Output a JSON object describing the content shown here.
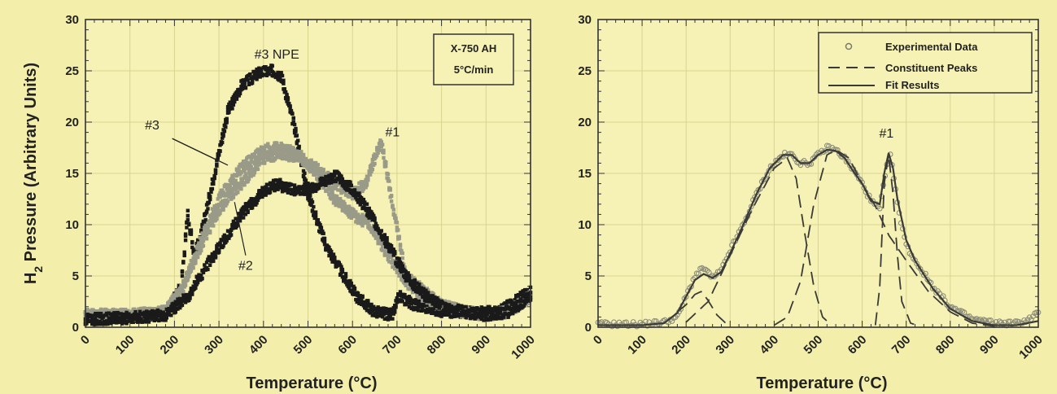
{
  "colors": {
    "background": "#f3efaa",
    "plot_background": "#f6f2b6",
    "grid": "#d9d48c",
    "axis": "#333333",
    "dark_series": "#1a1a1a",
    "gray_series": "#9a9a88",
    "fit_line": "#3a3a36"
  },
  "ylabel_main": "H",
  "ylabel_sub": "2",
  "ylabel_rest": " Pressure (Arbitrary Units)",
  "chart_data": [
    {
      "type": "scatter",
      "xlabel": "Temperature (°C)",
      "xlim": [
        0,
        1000
      ],
      "ylim": [
        0,
        30
      ],
      "x_ticks": [
        "0",
        "100",
        "200",
        "300",
        "400",
        "500",
        "600",
        "700",
        "800",
        "900",
        "1000"
      ],
      "y_ticks": [
        "0",
        "5",
        "10",
        "15",
        "20",
        "25",
        "30"
      ],
      "grid": true,
      "annotations": [
        {
          "text": "#3 NPE",
          "x": 430,
          "y": 26.2
        },
        {
          "text": "#3",
          "x": 150,
          "y": 19.3
        },
        {
          "text": "#1",
          "x": 690,
          "y": 18.6
        },
        {
          "text": "#2",
          "x": 360,
          "y": 5.6
        }
      ],
      "info_box": {
        "line1": "X-750 AH",
        "line2": "5°C/min"
      },
      "series": [
        {
          "label": "#3 NPE",
          "style": "dark",
          "x": [
            0,
            100,
            180,
            215,
            230,
            245,
            260,
            285,
            320,
            350,
            390,
            420,
            440,
            470,
            500,
            540,
            580,
            610,
            650,
            690,
            705,
            740,
            800,
            870,
            930,
            1000
          ],
          "y": [
            1.0,
            1.0,
            1.3,
            4.0,
            11.0,
            7.0,
            9.0,
            14.0,
            21.0,
            23.5,
            24.8,
            25.0,
            24.5,
            19.5,
            13.0,
            8.0,
            5.0,
            3.0,
            1.5,
            1.2,
            3.0,
            2.2,
            1.6,
            1.4,
            1.5,
            3.5
          ]
        },
        {
          "label": "#1",
          "style": "gray",
          "x": [
            0,
            100,
            180,
            220,
            260,
            300,
            350,
            400,
            440,
            480,
            520,
            560,
            600,
            630,
            650,
            665,
            690,
            720,
            760,
            800,
            850,
            900,
            950,
            1000
          ],
          "y": [
            1.2,
            1.2,
            1.5,
            4.0,
            8.0,
            11.5,
            14.0,
            16.5,
            17.0,
            16.5,
            15.5,
            14.0,
            13.0,
            14.0,
            16.5,
            18.0,
            12.0,
            5.0,
            3.5,
            2.2,
            1.5,
            1.2,
            1.5,
            3.0
          ]
        },
        {
          "label": "#3",
          "style": "gray",
          "x": [
            0,
            100,
            180,
            220,
            260,
            300,
            350,
            400,
            440,
            480,
            520,
            560,
            600,
            640,
            680,
            720,
            760,
            800,
            850,
            900,
            950,
            1000
          ],
          "y": [
            1.2,
            1.2,
            1.5,
            4.0,
            8.5,
            12.5,
            15.5,
            17.3,
            17.5,
            16.8,
            15.0,
            12.5,
            11.0,
            10.0,
            7.0,
            4.5,
            3.0,
            2.2,
            1.5,
            1.2,
            1.5,
            3.0
          ]
        },
        {
          "label": "#2",
          "style": "dark",
          "x": [
            0,
            100,
            180,
            230,
            280,
            320,
            360,
            400,
            430,
            460,
            500,
            540,
            560,
            600,
            640,
            680,
            720,
            760,
            800,
            850,
            900,
            950,
            1000
          ],
          "y": [
            0.8,
            0.9,
            1.2,
            3.0,
            6.5,
            9.0,
            11.5,
            13.2,
            14.0,
            13.4,
            13.5,
            14.2,
            14.8,
            13.5,
            11.0,
            8.0,
            5.0,
            3.2,
            2.0,
            1.5,
            1.2,
            1.5,
            3.0
          ]
        }
      ]
    },
    {
      "type": "line",
      "xlabel": "Temperature (°C)",
      "xlim": [
        0,
        1000
      ],
      "ylim": [
        0,
        30
      ],
      "x_ticks": [
        "0",
        "100",
        "200",
        "300",
        "400",
        "500",
        "600",
        "700",
        "800",
        "900",
        "1000"
      ],
      "y_ticks": [
        "0",
        "5",
        "10",
        "15",
        "20",
        "25",
        "30"
      ],
      "grid": true,
      "legend_position": "top-right",
      "annotations": [
        {
          "text": "#1",
          "x": 655,
          "y": 18.5
        }
      ],
      "legend": [
        {
          "label": "Experimental Data",
          "style": "marker"
        },
        {
          "label": "Constituent Peaks",
          "style": "dashed"
        },
        {
          "label": "Fit Results",
          "style": "solid"
        }
      ],
      "series": [
        {
          "label": "Experimental Data",
          "style": "marker",
          "x": [
            0,
            50,
            100,
            150,
            180,
            200,
            220,
            240,
            260,
            280,
            300,
            330,
            360,
            390,
            420,
            440,
            460,
            480,
            500,
            520,
            540,
            560,
            580,
            600,
            620,
            640,
            655,
            665,
            680,
            700,
            720,
            760,
            800,
            850,
            900,
            950,
            980,
            1000
          ],
          "y": [
            0.3,
            0.3,
            0.3,
            0.5,
            1.0,
            3.0,
            5.0,
            5.8,
            4.8,
            5.5,
            7.5,
            10.0,
            13.0,
            15.5,
            16.8,
            16.8,
            16.0,
            16.0,
            16.8,
            17.5,
            17.3,
            16.5,
            15.3,
            14.0,
            12.3,
            11.5,
            15.5,
            16.8,
            12.0,
            8.0,
            6.5,
            4.0,
            2.0,
            0.8,
            0.4,
            0.4,
            0.8,
            1.5
          ]
        },
        {
          "label": "Peak 1",
          "style": "dashed",
          "x": [
            180,
            200,
            220,
            235,
            250,
            270,
            290
          ],
          "y": [
            1.5,
            2.2,
            3.2,
            3.5,
            2.6,
            1.2,
            0.4
          ]
        },
        {
          "label": "Peak 2",
          "style": "dashed",
          "x": [
            200,
            250,
            300,
            350,
            400,
            430,
            450,
            470,
            490,
            510,
            530
          ],
          "y": [
            0.5,
            2.5,
            7.0,
            11.5,
            15.5,
            16.5,
            14.5,
            9.0,
            4.0,
            1.0,
            0.2
          ]
        },
        {
          "label": "Peak 3",
          "style": "dashed",
          "x": [
            400,
            430,
            460,
            490,
            520,
            540,
            570,
            600,
            630,
            660,
            700,
            750,
            800,
            850,
            900
          ],
          "y": [
            0.2,
            1.0,
            4.5,
            12.0,
            16.8,
            17.3,
            16.5,
            14.0,
            11.8,
            9.0,
            6.5,
            3.5,
            1.5,
            0.4,
            0.1
          ]
        },
        {
          "label": "Peak 4",
          "style": "dashed",
          "x": [
            630,
            640,
            650,
            660,
            670,
            680,
            690,
            710,
            730
          ],
          "y": [
            0.2,
            4.0,
            14.0,
            16.8,
            13.0,
            7.0,
            2.5,
            0.4,
            0.1
          ]
        },
        {
          "label": "Fit Results",
          "style": "solid",
          "x": [
            0,
            100,
            150,
            180,
            200,
            220,
            240,
            260,
            280,
            300,
            330,
            360,
            390,
            420,
            440,
            460,
            480,
            500,
            520,
            540,
            560,
            580,
            600,
            620,
            640,
            650,
            660,
            670,
            680,
            700,
            720,
            760,
            800,
            850,
            900,
            950,
            1000
          ],
          "y": [
            0.2,
            0.2,
            0.4,
            1.4,
            3.0,
            4.6,
            5.2,
            4.8,
            5.4,
            7.2,
            10.0,
            13.0,
            15.5,
            16.8,
            16.8,
            16.0,
            16.0,
            16.8,
            17.3,
            17.2,
            16.5,
            15.2,
            14.0,
            12.3,
            12.0,
            15.0,
            17.0,
            15.5,
            12.5,
            8.5,
            6.5,
            3.8,
            1.8,
            0.6,
            0.2,
            0.2,
            0.6
          ]
        }
      ]
    }
  ]
}
